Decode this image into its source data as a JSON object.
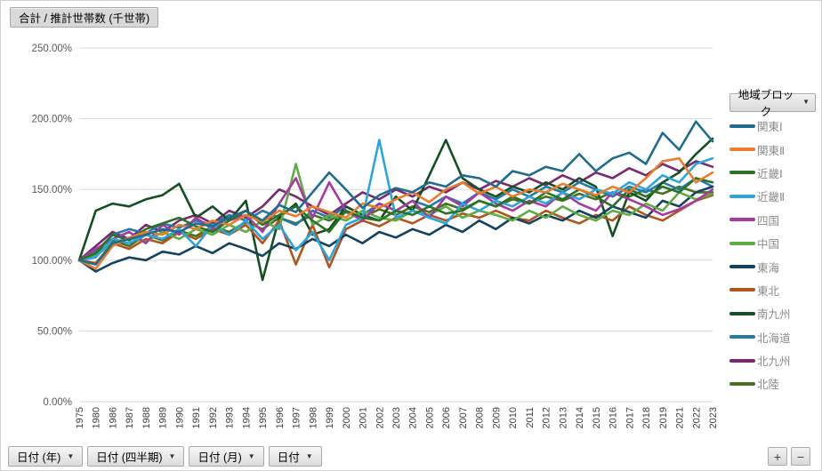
{
  "title": {
    "label": "合計 / 推計世帯数 (千世帯)"
  },
  "legend": {
    "header": "地域ブロック",
    "dropdown_icon": "▼"
  },
  "filters": [
    {
      "label": "日付 (年)"
    },
    {
      "label": "日付 (四半期)"
    },
    {
      "label": "日付 (月)"
    },
    {
      "label": "日付"
    }
  ],
  "filter_dropdown_icon": "▼",
  "zoom_controls": {
    "zoom_in": "+",
    "zoom_out": "−"
  },
  "colors": {
    "gridline": "#d9d9d9",
    "axis_label": "#404040",
    "y_label": "#595959",
    "legend_text": "#8a8a8a"
  },
  "chart_data": {
    "type": "line",
    "title": "合計 / 推計世帯数 (千世帯)",
    "xlabel": "日付 (年)",
    "ylabel": "合計 / 推計世帯数 (千世帯)",
    "ylim": [
      0,
      250
    ],
    "grid": true,
    "legend_position": "right",
    "y_tick_values": [
      0,
      50,
      100,
      150,
      200,
      250
    ],
    "y_ticks": [
      "0.00%",
      "50.00%",
      "100.00%",
      "150.00%",
      "200.00%",
      "250.00%"
    ],
    "categories": [
      "1975",
      "1980",
      "1986",
      "1987",
      "1988",
      "1989",
      "1990",
      "1991",
      "1992",
      "1993",
      "1994",
      "1995",
      "1996",
      "1997",
      "1998",
      "1999",
      "2000",
      "2001",
      "2002",
      "2003",
      "2004",
      "2005",
      "2006",
      "2007",
      "2008",
      "2009",
      "2010",
      "2011",
      "2012",
      "2013",
      "2014",
      "2015",
      "2016",
      "2017",
      "2018",
      "2019",
      "2021",
      "2022",
      "2023"
    ],
    "series": [
      {
        "name": "関東Ⅰ",
        "color": "#1F6C8F",
        "values": [
          100,
          97,
          112,
          115,
          118,
          122,
          120,
          126,
          124,
          130,
          135,
          128,
          139,
          134,
          148,
          162,
          150,
          137,
          146,
          151,
          148,
          155,
          152,
          160,
          158,
          152,
          163,
          160,
          166,
          163,
          175,
          163,
          172,
          176,
          168,
          190,
          178,
          198,
          184
        ]
      },
      {
        "name": "関東Ⅱ",
        "color": "#E87D2E",
        "values": [
          100,
          94,
          110,
          116,
          120,
          118,
          125,
          122,
          128,
          125,
          132,
          127,
          135,
          131,
          138,
          134,
          130,
          140,
          137,
          143,
          148,
          141,
          150,
          155,
          147,
          152,
          145,
          150,
          148,
          154,
          150,
          146,
          152,
          148,
          158,
          170,
          172,
          155,
          162
        ]
      },
      {
        "name": "近畿Ⅰ",
        "color": "#2B7228",
        "values": [
          100,
          105,
          118,
          114,
          122,
          126,
          130,
          124,
          120,
          128,
          135,
          125,
          132,
          138,
          128,
          120,
          135,
          130,
          128,
          135,
          132,
          138,
          133,
          135,
          142,
          138,
          145,
          140,
          148,
          143,
          150,
          145,
          138,
          150,
          145,
          152,
          148,
          158,
          155
        ]
      },
      {
        "name": "近畿Ⅱ",
        "color": "#2EA3DC",
        "values": [
          100,
          102,
          115,
          112,
          118,
          115,
          122,
          110,
          125,
          118,
          128,
          115,
          125,
          107,
          120,
          100,
          125,
          130,
          185,
          130,
          135,
          130,
          126,
          140,
          135,
          142,
          138,
          145,
          140,
          148,
          143,
          150,
          147,
          155,
          150,
          160,
          155,
          168,
          172
        ]
      },
      {
        "name": "四国",
        "color": "#A63AA0",
        "values": [
          100,
          108,
          115,
          120,
          112,
          125,
          118,
          130,
          122,
          128,
          132,
          120,
          140,
          158,
          130,
          155,
          135,
          128,
          140,
          135,
          142,
          130,
          145,
          138,
          148,
          140,
          135,
          142,
          138,
          148,
          140,
          135,
          148,
          143,
          138,
          132,
          136,
          142,
          150
        ]
      },
      {
        "name": "中国",
        "color": "#5EAC44",
        "values": [
          100,
          103,
          112,
          116,
          113,
          120,
          115,
          122,
          118,
          125,
          120,
          128,
          122,
          168,
          125,
          132,
          128,
          135,
          130,
          128,
          135,
          132,
          138,
          130,
          135,
          132,
          128,
          135,
          130,
          138,
          132,
          128,
          135,
          132,
          140,
          135,
          148,
          143,
          147
        ]
      },
      {
        "name": "東海",
        "color": "#15425F",
        "values": [
          100,
          92,
          98,
          102,
          100,
          106,
          104,
          110,
          105,
          112,
          108,
          103,
          112,
          108,
          115,
          110,
          118,
          112,
          120,
          116,
          122,
          118,
          125,
          120,
          128,
          122,
          130,
          126,
          132,
          128,
          135,
          130,
          138,
          134,
          130,
          142,
          138,
          148,
          152
        ]
      },
      {
        "name": "東北",
        "color": "#B0551C",
        "values": [
          100,
          98,
          112,
          108,
          115,
          112,
          120,
          115,
          122,
          118,
          125,
          112,
          128,
          97,
          125,
          95,
          122,
          128,
          124,
          130,
          126,
          132,
          128,
          133,
          130,
          135,
          130,
          128,
          135,
          130,
          126,
          132,
          128,
          138,
          132,
          128,
          135,
          142,
          146
        ]
      },
      {
        "name": "南九州",
        "color": "#154F22",
        "values": [
          100,
          135,
          140,
          138,
          143,
          146,
          154,
          130,
          138,
          128,
          142,
          86,
          130,
          140,
          118,
          122,
          138,
          132,
          128,
          145,
          135,
          160,
          185,
          158,
          150,
          145,
          152,
          148,
          155,
          150,
          158,
          152,
          117,
          148,
          142,
          155,
          162,
          175,
          186
        ]
      },
      {
        "name": "北海道",
        "color": "#2679A8",
        "values": [
          100,
          106,
          118,
          122,
          119,
          126,
          123,
          128,
          125,
          132,
          128,
          135,
          130,
          125,
          135,
          130,
          138,
          132,
          140,
          135,
          142,
          138,
          145,
          140,
          148,
          143,
          150,
          145,
          152,
          148,
          155,
          150,
          145,
          152,
          148,
          155,
          150,
          158,
          152
        ]
      },
      {
        "name": "北九州",
        "color": "#78296F",
        "values": [
          100,
          110,
          120,
          115,
          125,
          120,
          128,
          132,
          126,
          135,
          130,
          138,
          150,
          145,
          138,
          132,
          140,
          148,
          143,
          150,
          145,
          152,
          148,
          155,
          150,
          156,
          152,
          158,
          153,
          160,
          155,
          162,
          158,
          165,
          160,
          168,
          163,
          170,
          166
        ]
      },
      {
        "name": "北陸",
        "color": "#47711E",
        "values": [
          100,
          104,
          114,
          110,
          118,
          114,
          121,
          117,
          124,
          120,
          127,
          122,
          130,
          126,
          132,
          128,
          134,
          130,
          136,
          132,
          138,
          134,
          140,
          136,
          142,
          138,
          143,
          140,
          145,
          142,
          147,
          143,
          148,
          145,
          150,
          147,
          152,
          148,
          148
        ]
      }
    ]
  }
}
